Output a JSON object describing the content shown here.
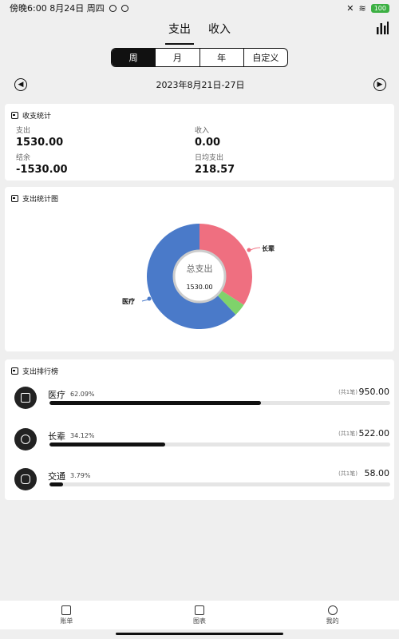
{
  "status": {
    "left": "傍晚6:00 8月24日 周四",
    "battery": "100"
  },
  "tabs": [
    {
      "label": "支出",
      "active": true
    },
    {
      "label": "收入",
      "active": false
    }
  ],
  "period": [
    {
      "label": "周",
      "active": true
    },
    {
      "label": "月"
    },
    {
      "label": "年"
    },
    {
      "label": "自定义"
    }
  ],
  "date_range": "2023年8月21日-27日",
  "summary": {
    "title": "收支统计",
    "expense_label": "支出",
    "expense_value": "1530.00",
    "income_label": "收入",
    "income_value": "0.00",
    "balance_label": "结余",
    "balance_value": "-1530.00",
    "daily_label": "日均支出",
    "daily_value": "218.57"
  },
  "pie": {
    "title": "支出统计图",
    "center_label": "总支出",
    "center_value": "1530.00",
    "label_medical": "医疗",
    "label_elder": "长辈"
  },
  "chart_data": {
    "type": "pie",
    "categories": [
      "医疗",
      "长辈",
      "交通"
    ],
    "values": [
      950.0,
      522.0,
      58.0
    ],
    "colors": [
      "#4a7ac9",
      "#ef6f80",
      "#7fd36b"
    ]
  },
  "ranking": {
    "title": "支出排行榜",
    "items": [
      {
        "name": "医疗",
        "pct": "62.09%",
        "count": "(共1笔)",
        "amount": "950.00",
        "fraction": 0.62
      },
      {
        "name": "长辈",
        "pct": "34.12%",
        "count": "(共1笔)",
        "amount": "522.00",
        "fraction": 0.34
      },
      {
        "name": "交通",
        "pct": "3.79%",
        "count": "(共1笔)",
        "amount": "58.00",
        "fraction": 0.04
      }
    ]
  },
  "nav": [
    {
      "label": "账单"
    },
    {
      "label": "图表"
    },
    {
      "label": "我的"
    }
  ]
}
